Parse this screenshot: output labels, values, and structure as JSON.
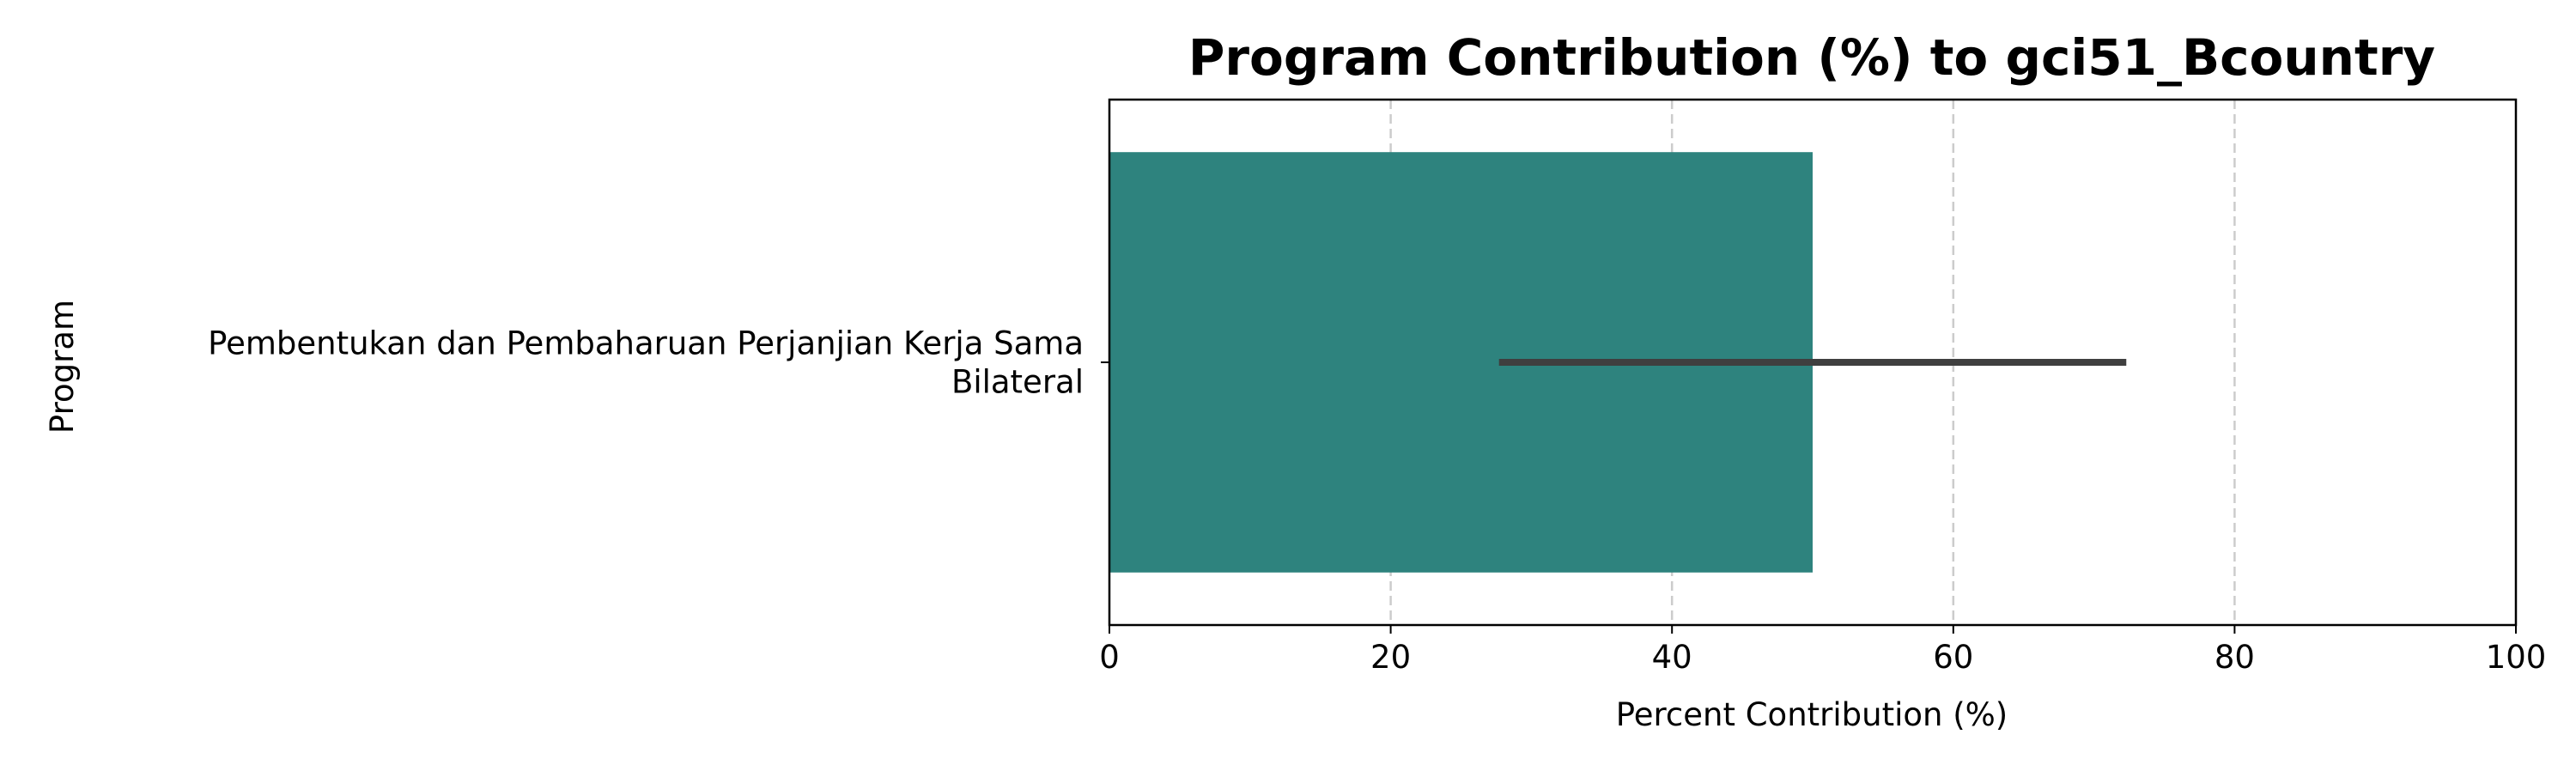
{
  "chart_data": {
    "type": "bar",
    "orientation": "horizontal",
    "title": "Program Contribution (%) to gci51_Bcountry",
    "xlabel": "Percent Contribution (%)",
    "ylabel": "Program",
    "categories": [
      [
        "Pembentukan dan Pembaharuan Perjanjian Kerja Sama",
        "Bilateral"
      ]
    ],
    "values": [
      50
    ],
    "error_intervals": [
      [
        27.7,
        72.3
      ]
    ],
    "xlim": [
      0,
      100
    ],
    "xticks": [
      "0",
      "20",
      "40",
      "60",
      "80",
      "100"
    ],
    "xtick_values": [
      0,
      20,
      40,
      60,
      80,
      100
    ],
    "grid": "x-axis, dashed",
    "legend": "none",
    "colors": {
      "bar": "#2e837e",
      "error_bar": "#3f3f3f",
      "grid": "#cccccc",
      "axis": "#000000"
    }
  }
}
